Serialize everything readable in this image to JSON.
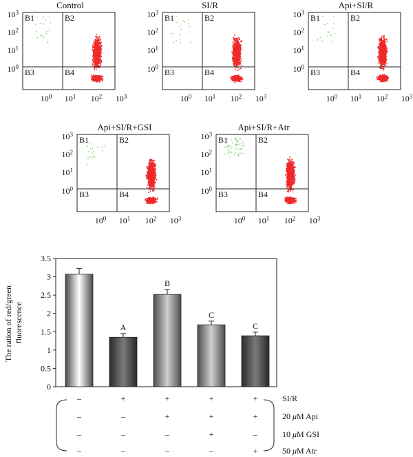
{
  "figure": {
    "flow_panels": [
      {
        "title": "Control",
        "quadrants": [
          "B1",
          "B2",
          "B3",
          "B4"
        ],
        "y_ticks": [
          "10",
          "10",
          "10",
          "10"
        ],
        "y_exps": [
          "3",
          "2",
          "1",
          "0"
        ],
        "x_ticks": [
          "10",
          "10",
          "10",
          "10"
        ],
        "x_exps": [
          "0",
          "1",
          "2",
          "3"
        ]
      },
      {
        "title": "SI/R",
        "quadrants": [
          "B1",
          "B2",
          "B3",
          "B4"
        ],
        "y_ticks": [
          "10",
          "10",
          "10",
          "10"
        ],
        "y_exps": [
          "3",
          "2",
          "1",
          "0"
        ],
        "x_ticks": [
          "10",
          "10",
          "10",
          "10"
        ],
        "x_exps": [
          "0",
          "1",
          "2",
          "3"
        ]
      },
      {
        "title": "Api+SI/R",
        "quadrants": [
          "B1",
          "B2",
          "B3",
          "B4"
        ],
        "y_ticks": [
          "10",
          "10",
          "10",
          "10"
        ],
        "y_exps": [
          "3",
          "2",
          "1",
          "0"
        ],
        "x_ticks": [
          "10",
          "10",
          "10",
          "10"
        ],
        "x_exps": [
          "0",
          "1",
          "2",
          "3"
        ]
      },
      {
        "title": "Api+SI/R+GSI",
        "quadrants": [
          "B1",
          "B2",
          "B3",
          "B4"
        ],
        "y_ticks": [
          "10",
          "10",
          "10",
          "10"
        ],
        "y_exps": [
          "3",
          "2",
          "1",
          "0"
        ],
        "x_ticks": [
          "10",
          "10",
          "10",
          "10"
        ],
        "x_exps": [
          "0",
          "1",
          "2",
          "3"
        ]
      },
      {
        "title": "Api+SI/R+Atr",
        "quadrants": [
          "B1",
          "B2",
          "B3",
          "B4"
        ],
        "y_ticks": [
          "10",
          "10",
          "10",
          "10"
        ],
        "y_exps": [
          "3",
          "2",
          "1",
          "0"
        ],
        "x_ticks": [
          "10",
          "10",
          "10",
          "10"
        ],
        "x_exps": [
          "0",
          "1",
          "2",
          "3"
        ]
      }
    ],
    "colors": {
      "red_dots": "#ee2a2a",
      "green_dots": "#7fcf6f",
      "axis": "#222222"
    },
    "treatments": {
      "rows": [
        {
          "label_prefix": "",
          "label_unit": "",
          "label_name": "SI/R",
          "marks": [
            "–",
            "+",
            "+",
            "+",
            "+"
          ]
        },
        {
          "label_prefix": "20 ",
          "label_unit": "μ",
          "label_name": "M Api",
          "marks": [
            "–",
            "–",
            "+",
            "+",
            "+"
          ]
        },
        {
          "label_prefix": "10 ",
          "label_unit": "μ",
          "label_name": "M GSI",
          "marks": [
            "–",
            "–",
            "–",
            "+",
            "–"
          ]
        },
        {
          "label_prefix": "50 ",
          "label_unit": "μ",
          "label_name": "M Atr",
          "marks": [
            "–",
            "–",
            "–",
            "–",
            "+"
          ]
        }
      ]
    }
  },
  "chart_data": {
    "type": "bar",
    "title": "",
    "xlabel": "",
    "ylabel": "The ration of red/green fluorescence",
    "ylabel_lines": [
      "The ration of red/green",
      "fluorescence"
    ],
    "ylim": [
      0,
      3.5
    ],
    "yticks": [
      "0",
      "0.5",
      "1",
      "1.5",
      "2",
      "2.5",
      "3",
      "3.5"
    ],
    "categories": [
      "",
      "",
      "",
      "",
      ""
    ],
    "values": [
      3.07,
      1.35,
      2.52,
      1.69,
      1.39
    ],
    "errors": [
      0.16,
      0.1,
      0.13,
      0.1,
      0.1
    ],
    "letters": [
      "",
      "A",
      "B",
      "C",
      "C"
    ],
    "grid": false,
    "bar_styles": [
      "light",
      "dark",
      "mid",
      "mid",
      "dark"
    ]
  }
}
